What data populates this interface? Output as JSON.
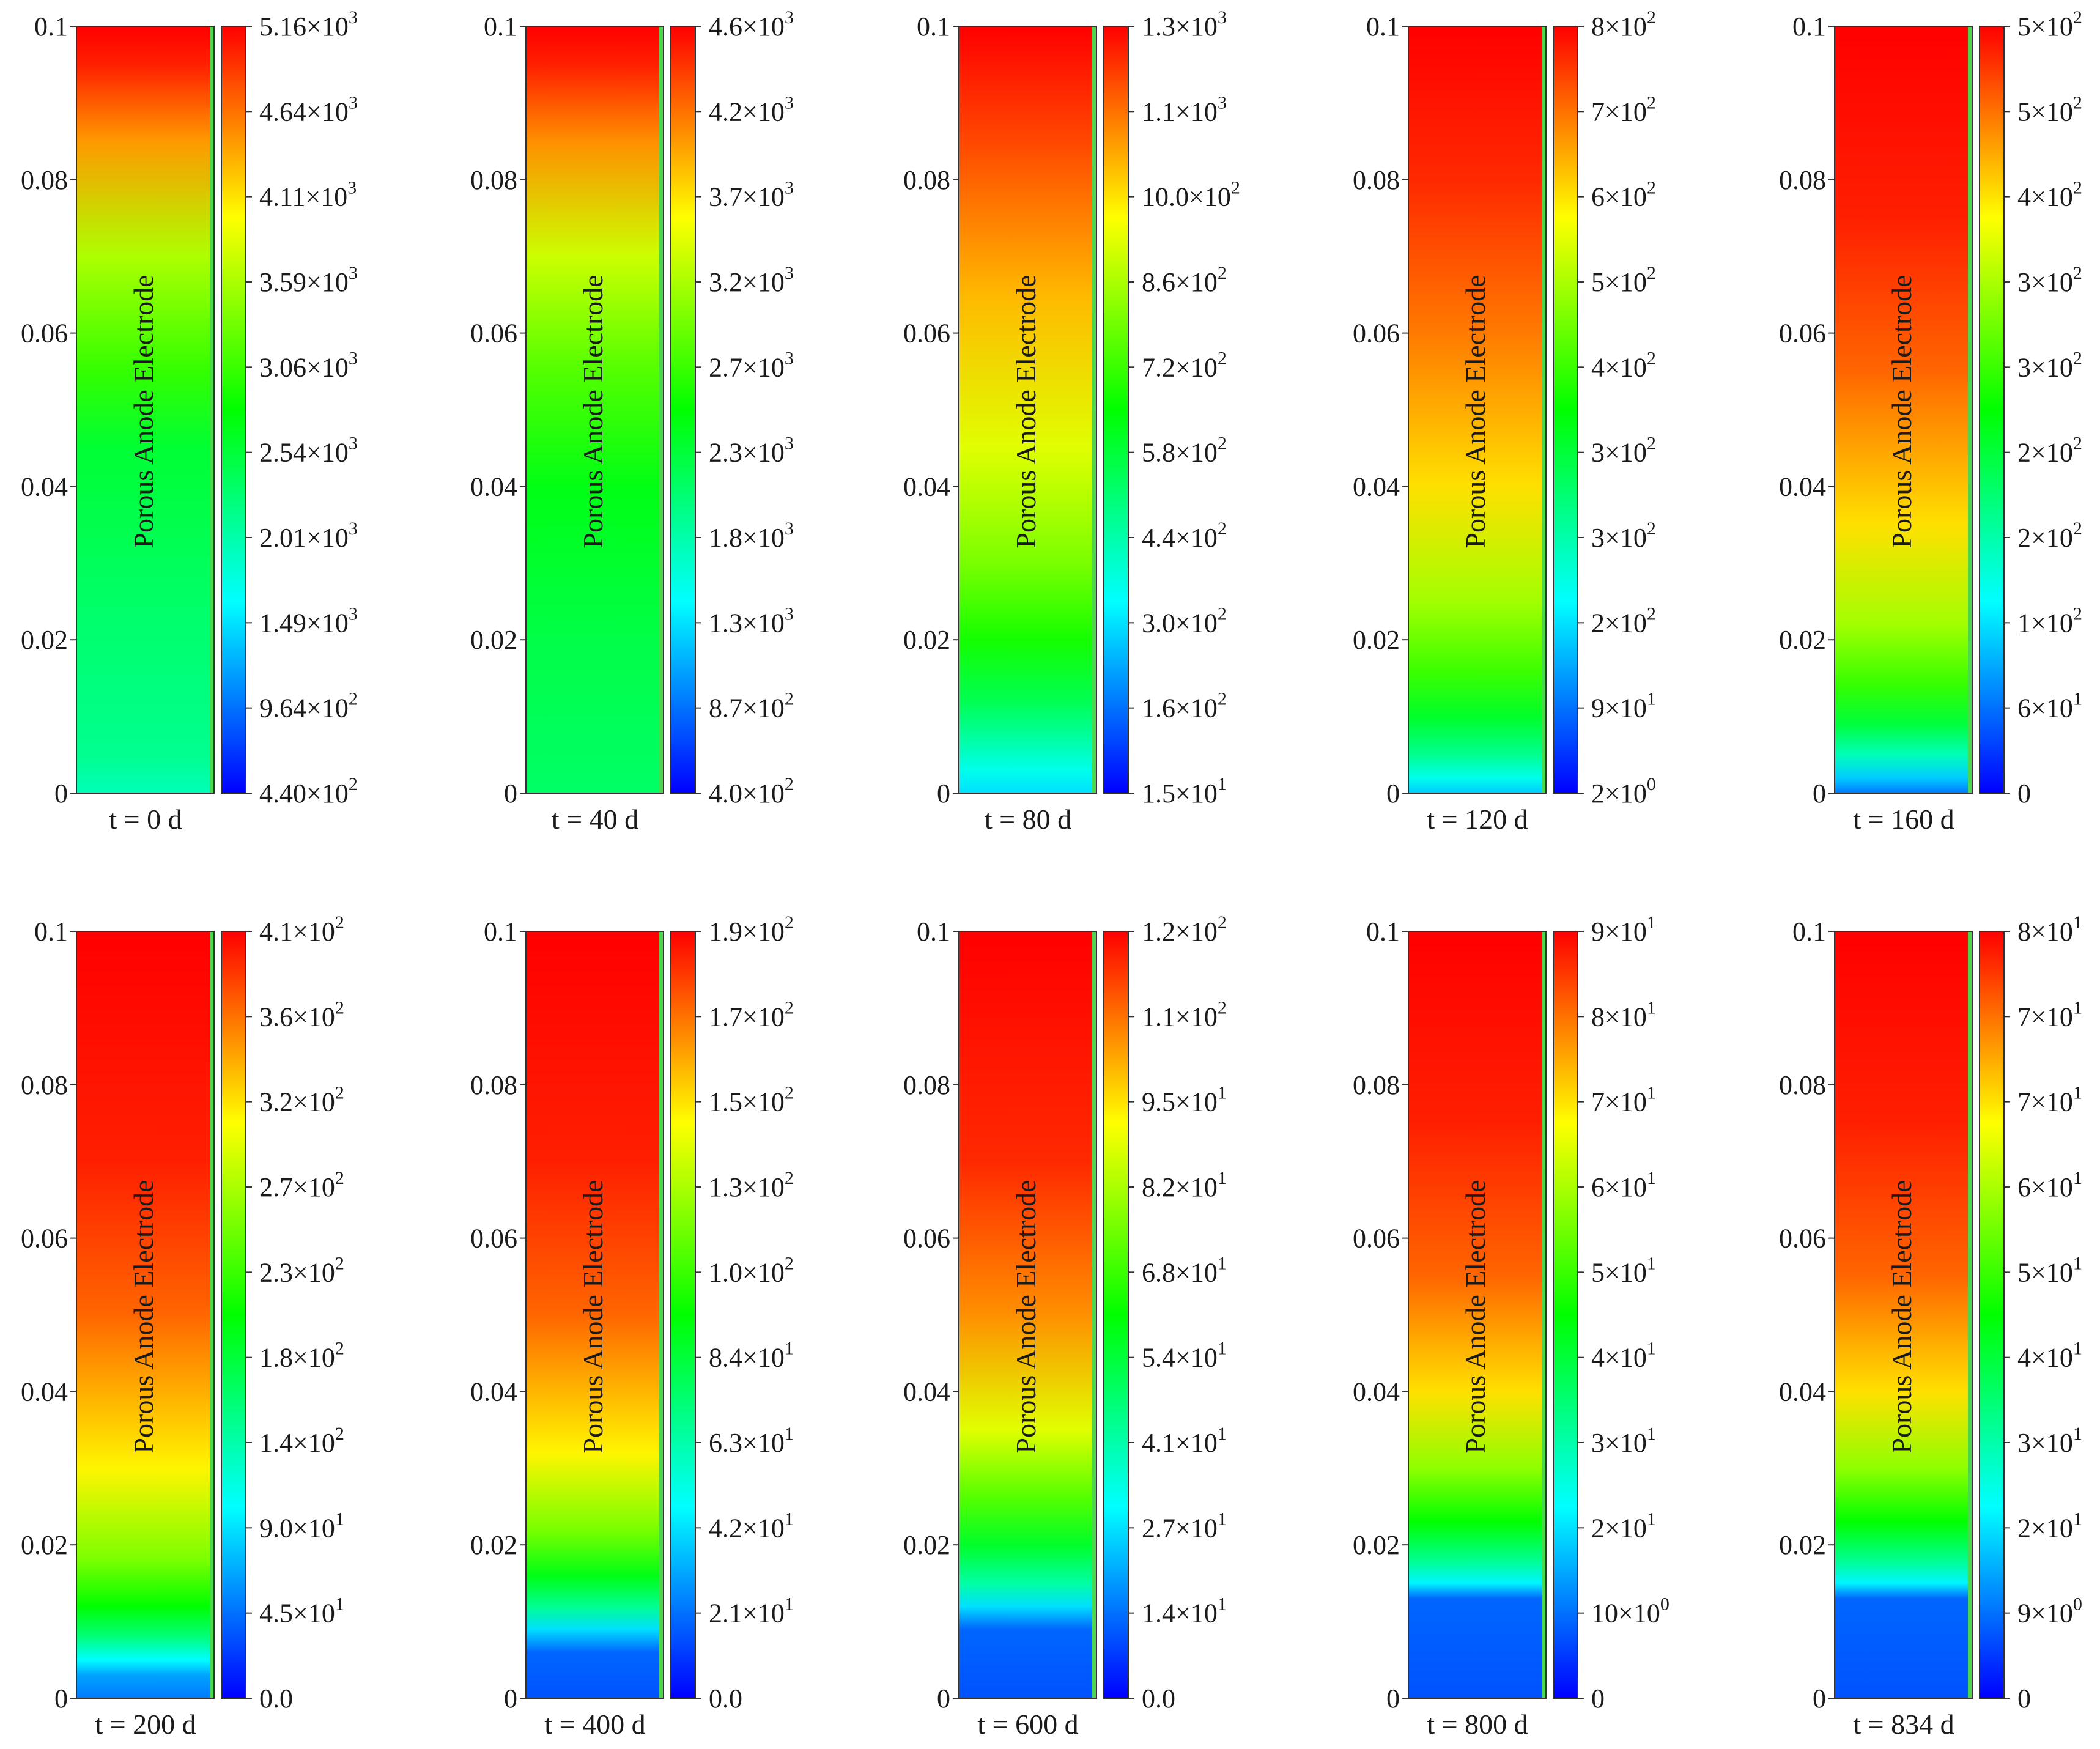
{
  "chart_data": [
    {
      "type": "heatmap",
      "time_label": "t = 0 d",
      "region_label": "Porous Anode Electrode",
      "y_ticks": [
        "0",
        "0.02",
        "0.04",
        "0.06",
        "0.08",
        "0.1"
      ],
      "y_range": [
        0,
        0.1
      ],
      "colorbar_ticks": [
        {
          "m": "4.40×10",
          "e": "2"
        },
        {
          "m": "9.64×10",
          "e": "2"
        },
        {
          "m": "1.49×10",
          "e": "3"
        },
        {
          "m": "2.01×10",
          "e": "3"
        },
        {
          "m": "2.54×10",
          "e": "3"
        },
        {
          "m": "3.06×10",
          "e": "3"
        },
        {
          "m": "3.59×10",
          "e": "3"
        },
        {
          "m": "4.11×10",
          "e": "3"
        },
        {
          "m": "4.64×10",
          "e": "3"
        },
        {
          "m": "5.16×10",
          "e": "3"
        }
      ],
      "colorbar_range": [
        440,
        5160
      ],
      "profile": [
        [
          0,
          0.32
        ],
        [
          0.05,
          0.36
        ],
        [
          0.25,
          0.4
        ],
        [
          0.45,
          0.45
        ],
        [
          0.55,
          0.55
        ],
        [
          0.7,
          0.67
        ],
        [
          0.85,
          0.85
        ],
        [
          0.95,
          0.97
        ],
        [
          1,
          1
        ]
      ]
    },
    {
      "type": "heatmap",
      "time_label": "t = 40 d",
      "region_label": "Porous Anode Electrode",
      "y_ticks": [
        "0",
        "0.02",
        "0.04",
        "0.06",
        "0.08",
        "0.1"
      ],
      "y_range": [
        0,
        0.1
      ],
      "colorbar_ticks": [
        {
          "m": "4.0×10",
          "e": "2"
        },
        {
          "m": "8.7×10",
          "e": "2"
        },
        {
          "m": "1.3×10",
          "e": "3"
        },
        {
          "m": "1.8×10",
          "e": "3"
        },
        {
          "m": "2.3×10",
          "e": "3"
        },
        {
          "m": "2.7×10",
          "e": "3"
        },
        {
          "m": "3.2×10",
          "e": "3"
        },
        {
          "m": "3.7×10",
          "e": "3"
        },
        {
          "m": "4.2×10",
          "e": "3"
        },
        {
          "m": "4.6×10",
          "e": "3"
        }
      ],
      "colorbar_range": [
        400,
        4600
      ],
      "profile": [
        [
          0,
          0.4
        ],
        [
          0.2,
          0.43
        ],
        [
          0.4,
          0.48
        ],
        [
          0.55,
          0.58
        ],
        [
          0.7,
          0.7
        ],
        [
          0.85,
          0.86
        ],
        [
          0.95,
          0.97
        ],
        [
          1,
          1
        ]
      ]
    },
    {
      "type": "heatmap",
      "time_label": "t = 80 d",
      "region_label": "Porous Anode Electrode",
      "y_ticks": [
        "0",
        "0.02",
        "0.04",
        "0.06",
        "0.08",
        "0.1"
      ],
      "y_range": [
        0,
        0.1
      ],
      "colorbar_ticks": [
        {
          "m": "1.5×10",
          "e": "1"
        },
        {
          "m": "1.6×10",
          "e": "2"
        },
        {
          "m": "3.0×10",
          "e": "2"
        },
        {
          "m": "4.4×10",
          "e": "2"
        },
        {
          "m": "5.8×10",
          "e": "2"
        },
        {
          "m": "7.2×10",
          "e": "2"
        },
        {
          "m": "8.6×10",
          "e": "2"
        },
        {
          "m": "10.0×10",
          "e": "2"
        },
        {
          "m": "1.1×10",
          "e": "3"
        },
        {
          "m": "1.3×10",
          "e": "3"
        }
      ],
      "colorbar_range": [
        15,
        1300
      ],
      "profile": [
        [
          0,
          0.22
        ],
        [
          0.03,
          0.27
        ],
        [
          0.07,
          0.34
        ],
        [
          0.12,
          0.42
        ],
        [
          0.2,
          0.52
        ],
        [
          0.3,
          0.62
        ],
        [
          0.45,
          0.72
        ],
        [
          0.65,
          0.82
        ],
        [
          0.85,
          0.93
        ],
        [
          1,
          1
        ]
      ]
    },
    {
      "type": "heatmap",
      "time_label": "t = 120 d",
      "region_label": "Porous Anode Electrode",
      "y_ticks": [
        "0",
        "0.02",
        "0.04",
        "0.06",
        "0.08",
        "0.1"
      ],
      "y_range": [
        0,
        0.1
      ],
      "colorbar_ticks": [
        {
          "m": "2×10",
          "e": "0"
        },
        {
          "m": "9×10",
          "e": "1"
        },
        {
          "m": "2×10",
          "e": "2"
        },
        {
          "m": "3×10",
          "e": "2"
        },
        {
          "m": "3×10",
          "e": "2"
        },
        {
          "m": "4×10",
          "e": "2"
        },
        {
          "m": "5×10",
          "e": "2"
        },
        {
          "m": "6×10",
          "e": "2"
        },
        {
          "m": "7×10",
          "e": "2"
        },
        {
          "m": "8×10",
          "e": "2"
        }
      ],
      "colorbar_range": [
        2,
        800
      ],
      "profile": [
        [
          0,
          0.2
        ],
        [
          0.02,
          0.27
        ],
        [
          0.05,
          0.36
        ],
        [
          0.1,
          0.46
        ],
        [
          0.16,
          0.56
        ],
        [
          0.25,
          0.66
        ],
        [
          0.4,
          0.78
        ],
        [
          0.6,
          0.88
        ],
        [
          0.8,
          0.96
        ],
        [
          1,
          1
        ]
      ]
    },
    {
      "type": "heatmap",
      "time_label": "t = 160 d",
      "region_label": "Porous Anode Electrode",
      "y_ticks": [
        "0",
        "0.02",
        "0.04",
        "0.06",
        "0.08",
        "0.1"
      ],
      "y_range": [
        0,
        0.1
      ],
      "colorbar_ticks": [
        {
          "m": "0",
          "e": ""
        },
        {
          "m": "6×10",
          "e": "1"
        },
        {
          "m": "1×10",
          "e": "2"
        },
        {
          "m": "2×10",
          "e": "2"
        },
        {
          "m": "2×10",
          "e": "2"
        },
        {
          "m": "3×10",
          "e": "2"
        },
        {
          "m": "3×10",
          "e": "2"
        },
        {
          "m": "4×10",
          "e": "2"
        },
        {
          "m": "5×10",
          "e": "2"
        },
        {
          "m": "5×10",
          "e": "2"
        }
      ],
      "colorbar_range": [
        0,
        500
      ],
      "profile": [
        [
          0,
          0.12
        ],
        [
          0.02,
          0.2
        ],
        [
          0.05,
          0.32
        ],
        [
          0.09,
          0.44
        ],
        [
          0.14,
          0.55
        ],
        [
          0.22,
          0.66
        ],
        [
          0.35,
          0.78
        ],
        [
          0.55,
          0.9
        ],
        [
          0.75,
          0.97
        ],
        [
          1,
          1
        ]
      ]
    },
    {
      "type": "heatmap",
      "time_label": "t = 200 d",
      "region_label": "Porous Anode Electrode",
      "y_ticks": [
        "0",
        "0.02",
        "0.04",
        "0.06",
        "0.08",
        "0.1"
      ],
      "y_range": [
        0,
        0.1
      ],
      "colorbar_ticks": [
        {
          "m": "0.0",
          "e": ""
        },
        {
          "m": "4.5×10",
          "e": "1"
        },
        {
          "m": "9.0×10",
          "e": "1"
        },
        {
          "m": "1.4×10",
          "e": "2"
        },
        {
          "m": "1.8×10",
          "e": "2"
        },
        {
          "m": "2.3×10",
          "e": "2"
        },
        {
          "m": "2.7×10",
          "e": "2"
        },
        {
          "m": "3.2×10",
          "e": "2"
        },
        {
          "m": "3.6×10",
          "e": "2"
        },
        {
          "m": "4.1×10",
          "e": "2"
        }
      ],
      "colorbar_range": [
        0,
        410
      ],
      "profile": [
        [
          0,
          0.12
        ],
        [
          0.03,
          0.16
        ],
        [
          0.05,
          0.25
        ],
        [
          0.08,
          0.38
        ],
        [
          0.12,
          0.5
        ],
        [
          0.18,
          0.62
        ],
        [
          0.3,
          0.76
        ],
        [
          0.5,
          0.9
        ],
        [
          0.7,
          0.97
        ],
        [
          1,
          1
        ]
      ]
    },
    {
      "type": "heatmap",
      "time_label": "t = 400 d",
      "region_label": "Porous Anode Electrode",
      "y_ticks": [
        "0",
        "0.02",
        "0.04",
        "0.06",
        "0.08",
        "0.1"
      ],
      "y_range": [
        0,
        0.1
      ],
      "colorbar_ticks": [
        {
          "m": "0.0",
          "e": ""
        },
        {
          "m": "2.1×10",
          "e": "1"
        },
        {
          "m": "4.2×10",
          "e": "1"
        },
        {
          "m": "6.3×10",
          "e": "1"
        },
        {
          "m": "8.4×10",
          "e": "1"
        },
        {
          "m": "1.0×10",
          "e": "2"
        },
        {
          "m": "1.3×10",
          "e": "2"
        },
        {
          "m": "1.5×10",
          "e": "2"
        },
        {
          "m": "1.7×10",
          "e": "2"
        },
        {
          "m": "1.9×10",
          "e": "2"
        }
      ],
      "colorbar_range": [
        0,
        190
      ],
      "profile": [
        [
          0,
          0.08
        ],
        [
          0.06,
          0.1
        ],
        [
          0.09,
          0.22
        ],
        [
          0.12,
          0.36
        ],
        [
          0.16,
          0.48
        ],
        [
          0.22,
          0.62
        ],
        [
          0.32,
          0.76
        ],
        [
          0.5,
          0.9
        ],
        [
          0.7,
          0.97
        ],
        [
          1,
          1
        ]
      ]
    },
    {
      "type": "heatmap",
      "time_label": "t = 600 d",
      "region_label": "Porous Anode Electrode",
      "y_ticks": [
        "0",
        "0.02",
        "0.04",
        "0.06",
        "0.08",
        "0.1"
      ],
      "y_range": [
        0,
        0.1
      ],
      "colorbar_ticks": [
        {
          "m": "0.0",
          "e": ""
        },
        {
          "m": "1.4×10",
          "e": "1"
        },
        {
          "m": "2.7×10",
          "e": "1"
        },
        {
          "m": "4.1×10",
          "e": "1"
        },
        {
          "m": "5.4×10",
          "e": "1"
        },
        {
          "m": "6.8×10",
          "e": "1"
        },
        {
          "m": "8.2×10",
          "e": "1"
        },
        {
          "m": "9.5×10",
          "e": "1"
        },
        {
          "m": "1.1×10",
          "e": "2"
        },
        {
          "m": "1.2×10",
          "e": "2"
        }
      ],
      "colorbar_range": [
        0,
        120
      ],
      "profile": [
        [
          0,
          0.08
        ],
        [
          0.09,
          0.1
        ],
        [
          0.12,
          0.22
        ],
        [
          0.15,
          0.34
        ],
        [
          0.2,
          0.46
        ],
        [
          0.26,
          0.58
        ],
        [
          0.35,
          0.72
        ],
        [
          0.5,
          0.86
        ],
        [
          0.7,
          0.96
        ],
        [
          1,
          1
        ]
      ]
    },
    {
      "type": "heatmap",
      "time_label": "t = 800 d",
      "region_label": "Porous Anode Electrode",
      "y_ticks": [
        "0",
        "0.02",
        "0.04",
        "0.06",
        "0.08",
        "0.1"
      ],
      "y_range": [
        0,
        0.1
      ],
      "colorbar_ticks": [
        {
          "m": "0",
          "e": ""
        },
        {
          "m": "10×10",
          "e": "0"
        },
        {
          "m": "2×10",
          "e": "1"
        },
        {
          "m": "3×10",
          "e": "1"
        },
        {
          "m": "4×10",
          "e": "1"
        },
        {
          "m": "5×10",
          "e": "1"
        },
        {
          "m": "6×10",
          "e": "1"
        },
        {
          "m": "7×10",
          "e": "1"
        },
        {
          "m": "8×10",
          "e": "1"
        },
        {
          "m": "9×10",
          "e": "1"
        }
      ],
      "colorbar_range": [
        0,
        90
      ],
      "profile": [
        [
          0,
          0.08
        ],
        [
          0.13,
          0.1
        ],
        [
          0.15,
          0.24
        ],
        [
          0.18,
          0.36
        ],
        [
          0.23,
          0.5
        ],
        [
          0.3,
          0.64
        ],
        [
          0.4,
          0.78
        ],
        [
          0.55,
          0.9
        ],
        [
          0.75,
          0.97
        ],
        [
          1,
          1
        ]
      ]
    },
    {
      "type": "heatmap",
      "time_label": "t = 834 d",
      "region_label": "Porous Anode Electrode",
      "y_ticks": [
        "0",
        "0.02",
        "0.04",
        "0.06",
        "0.08",
        "0.1"
      ],
      "y_range": [
        0,
        0.1
      ],
      "colorbar_ticks": [
        {
          "m": "0",
          "e": ""
        },
        {
          "m": "9×10",
          "e": "0"
        },
        {
          "m": "2×10",
          "e": "1"
        },
        {
          "m": "3×10",
          "e": "1"
        },
        {
          "m": "4×10",
          "e": "1"
        },
        {
          "m": "5×10",
          "e": "1"
        },
        {
          "m": "6×10",
          "e": "1"
        },
        {
          "m": "7×10",
          "e": "1"
        },
        {
          "m": "7×10",
          "e": "1"
        },
        {
          "m": "8×10",
          "e": "1"
        }
      ],
      "colorbar_range": [
        0,
        80
      ],
      "profile": [
        [
          0,
          0.08
        ],
        [
          0.13,
          0.1
        ],
        [
          0.15,
          0.24
        ],
        [
          0.18,
          0.36
        ],
        [
          0.23,
          0.5
        ],
        [
          0.3,
          0.64
        ],
        [
          0.4,
          0.78
        ],
        [
          0.55,
          0.9
        ],
        [
          0.75,
          0.97
        ],
        [
          1,
          1
        ]
      ]
    }
  ],
  "colormap": [
    "#0000ff",
    "#00ffff",
    "#00ff00",
    "#ffff00",
    "#ff0000"
  ]
}
